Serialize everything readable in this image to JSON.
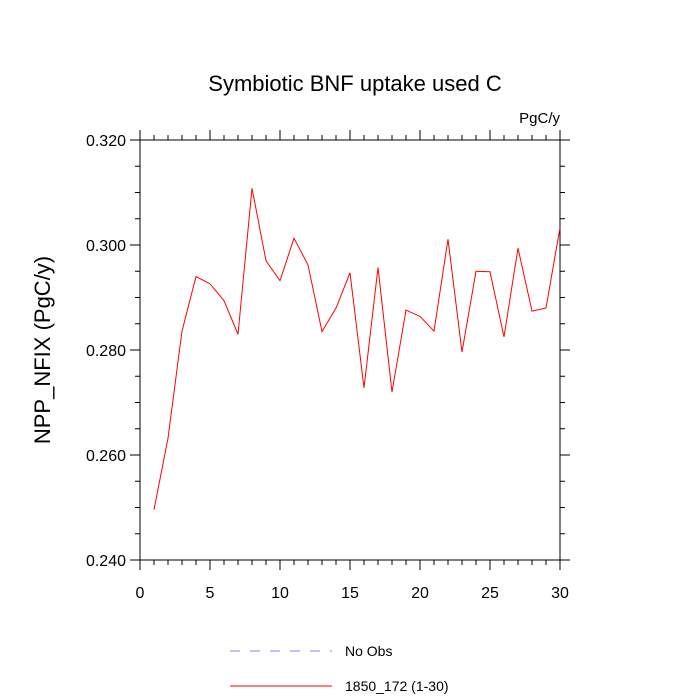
{
  "chart_data": {
    "type": "line",
    "title": "Symbiotic BNF uptake used C",
    "units": "PgC/y",
    "ylabel": "NPP_NFIX  (PgC/y)",
    "xlabel": "",
    "xlim": [
      0,
      30
    ],
    "ylim": [
      0.24,
      0.32
    ],
    "x_ticks": [
      0,
      5,
      10,
      15,
      20,
      25,
      30
    ],
    "x_tick_labels": [
      "0",
      "5",
      "10",
      "15",
      "20",
      "25",
      "30"
    ],
    "y_ticks": [
      0.24,
      0.26,
      0.28,
      0.3,
      0.32
    ],
    "y_tick_labels": [
      "0.240",
      "0.260",
      "0.280",
      "0.300",
      "0.320"
    ],
    "grid": false,
    "series": [
      {
        "name": "1850_172 (1-30)",
        "color": "#ff0000",
        "x": [
          1,
          2,
          3,
          4,
          5,
          6,
          7,
          8,
          9,
          10,
          11,
          12,
          13,
          14,
          15,
          16,
          17,
          18,
          19,
          20,
          21,
          22,
          23,
          24,
          25,
          26,
          27,
          28,
          29,
          30
        ],
        "values": [
          0.2496,
          0.2632,
          0.2836,
          0.294,
          0.2926,
          0.2894,
          0.283,
          0.3108,
          0.297,
          0.2932,
          0.3013,
          0.2962,
          0.2835,
          0.288,
          0.2947,
          0.2728,
          0.2957,
          0.272,
          0.2876,
          0.2864,
          0.2836,
          0.3011,
          0.2796,
          0.295,
          0.2949,
          0.2825,
          0.2994,
          0.2874,
          0.288,
          0.3033
        ]
      }
    ],
    "legend": [
      {
        "label": "No Obs",
        "color": "#8080ff",
        "style": "dashed"
      },
      {
        "label": "1850_172 (1-30)",
        "color": "#ff0000",
        "style": "solid"
      }
    ]
  }
}
